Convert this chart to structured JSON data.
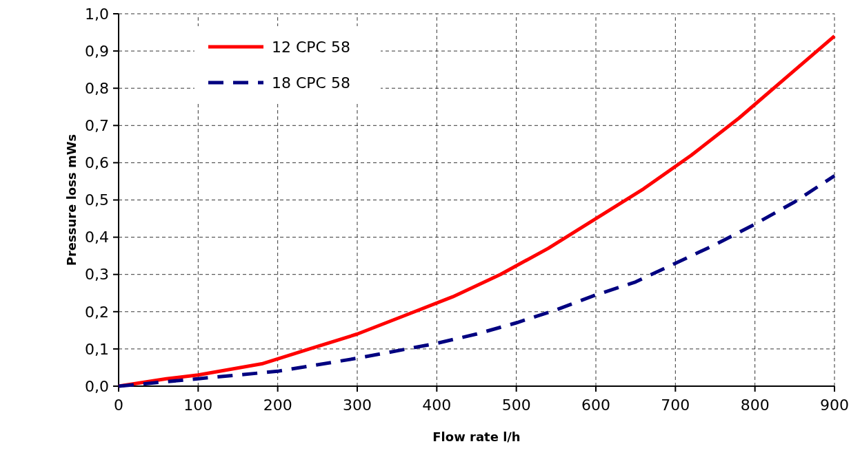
{
  "chart_data": {
    "type": "line",
    "xlabel": "Flow rate l/h",
    "ylabel": "Pressure loss mWs",
    "xlim": [
      0,
      900
    ],
    "xticks": [
      0,
      100,
      200,
      300,
      400,
      500,
      600,
      700,
      800,
      900
    ],
    "ylim": [
      0,
      1
    ],
    "yticks": [
      {
        "value": 0,
        "label": "0,0"
      },
      {
        "value": 0.1,
        "label": "0,1"
      },
      {
        "value": 0.2,
        "label": "0,2"
      },
      {
        "value": 0.3,
        "label": "0,3"
      },
      {
        "value": 0.4,
        "label": "0,4"
      },
      {
        "value": 0.5,
        "label": "0,5"
      },
      {
        "value": 0.6,
        "label": "0,6"
      },
      {
        "value": 0.7,
        "label": "0,7"
      },
      {
        "value": 0.8,
        "label": "0,8"
      },
      {
        "value": 0.9,
        "label": "0,9"
      },
      {
        "value": 1,
        "label": "1,0"
      }
    ],
    "grid": true,
    "legend": "top left",
    "marker": "none",
    "series": [
      {
        "name": "12 CPC 58",
        "color": "#ff0000",
        "line_style": "solid",
        "x": [
          0,
          60,
          100,
          180,
          240,
          300,
          360,
          420,
          480,
          540,
          600,
          660,
          720,
          780,
          840,
          900
        ],
        "values": [
          0,
          0.02,
          0.03,
          0.06,
          0.1,
          0.14,
          0.19,
          0.24,
          0.3,
          0.37,
          0.45,
          0.53,
          0.62,
          0.72,
          0.83,
          0.94
        ]
      },
      {
        "name": "18 CPC 58",
        "color": "#000080",
        "line_style": "dashed",
        "x": [
          0,
          100,
          200,
          300,
          400,
          450,
          500,
          550,
          600,
          650,
          700,
          750,
          800,
          850,
          900
        ],
        "values": [
          0,
          0.02,
          0.04,
          0.075,
          0.115,
          0.14,
          0.17,
          0.205,
          0.245,
          0.28,
          0.33,
          0.38,
          0.435,
          0.495,
          0.565
        ]
      }
    ]
  }
}
